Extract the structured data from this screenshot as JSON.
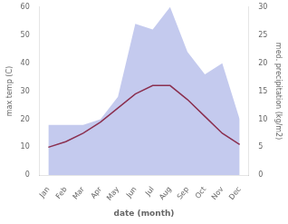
{
  "chart_data": {
    "type": "line",
    "categories": [
      "Jan",
      "Feb",
      "Mar",
      "Apr",
      "May",
      "Jun",
      "Jul",
      "Aug",
      "Sep",
      "Oct",
      "Nov",
      "Dec"
    ],
    "series": [
      {
        "type": "area",
        "color": "#b0b8e8",
        "axis": "y2",
        "values": [
          9,
          9,
          9,
          10,
          14,
          27,
          26,
          30,
          22,
          18,
          20,
          10
        ]
      },
      {
        "type": "line",
        "color": "#8B3050",
        "values": [
          10,
          12,
          15,
          19,
          24,
          29,
          32,
          32,
          27,
          21,
          15,
          11
        ]
      }
    ],
    "xlabel": "date (month)",
    "ylabel": "max temp (C)",
    "y2label": "med. precipitation (kg/m2)",
    "ylim": [
      0,
      60
    ],
    "yticks": [
      0,
      10,
      20,
      30,
      40,
      50,
      60
    ],
    "y2lim": [
      0,
      30
    ],
    "y2ticks": [
      0,
      5,
      10,
      15,
      20,
      25,
      30
    ],
    "grid": false
  }
}
